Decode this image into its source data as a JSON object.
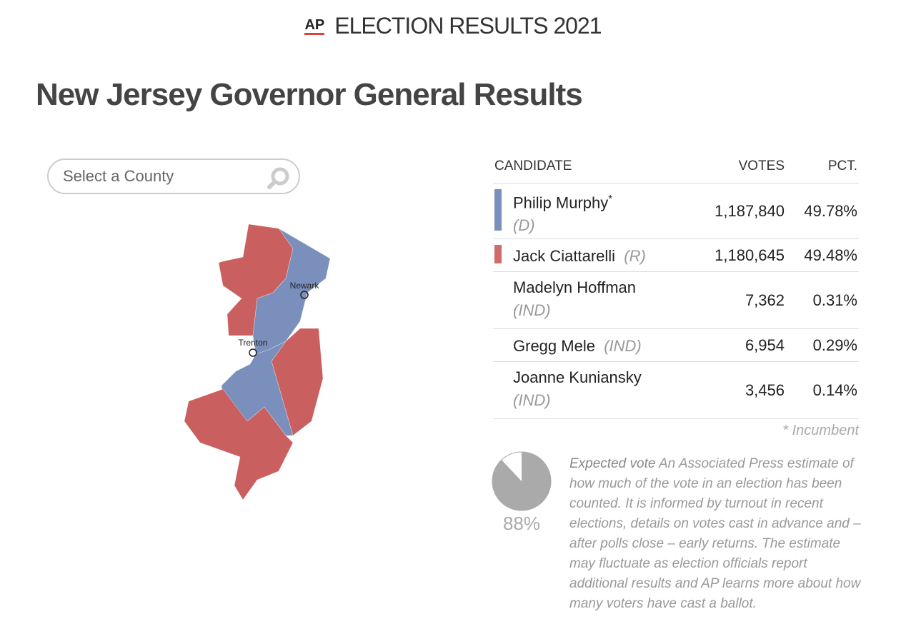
{
  "header": {
    "logo": "AP",
    "title": "ELECTION RESULTS 2021"
  },
  "page_title": "New Jersey Governor General Results",
  "search": {
    "placeholder": "Select a County"
  },
  "map": {
    "cities": [
      "Newark",
      "Trenton"
    ]
  },
  "table": {
    "columns": [
      "CANDIDATE",
      "VOTES",
      "PCT."
    ],
    "rows": [
      {
        "name": "Philip Murphy",
        "incumbent_mark": "*",
        "party": "(D)",
        "votes": "1,187,840",
        "pct": "49.78%",
        "color": "#7b8fbd"
      },
      {
        "name": "Jack Ciattarelli",
        "party": "(R)",
        "votes": "1,180,645",
        "pct": "49.48%",
        "color": "#d06b6b"
      },
      {
        "name": "Madelyn Hoffman",
        "party": "(IND)",
        "votes": "7,362",
        "pct": "0.31%"
      },
      {
        "name": "Gregg Mele",
        "party": "(IND)",
        "votes": "6,954",
        "pct": "0.29%"
      },
      {
        "name": "Joanne Kuniansky",
        "party": "(IND)",
        "votes": "3,456",
        "pct": "0.14%"
      }
    ],
    "footnote": "* Incumbent"
  },
  "expected_vote": {
    "value": 88,
    "label": "88%",
    "term": "Expected vote",
    "text": "An Associated Press estimate of how much of the vote in an election has been counted. It is informed by turnout in recent elections, details on votes cast in advance and – after polls close – early returns. The estimate may fluctuate as election officials report additional results and AP learns more about how many voters have cast a ballot."
  }
}
